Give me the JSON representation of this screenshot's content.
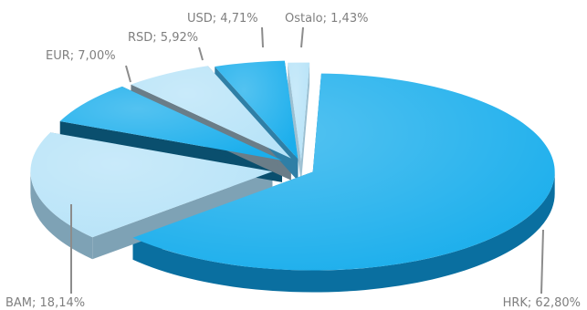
{
  "chart_data": {
    "type": "pie",
    "three_d": true,
    "exploded": true,
    "legend": "none",
    "data_label_format": "category; percent",
    "categories": [
      "HRK",
      "BAM",
      "EUR",
      "RSD",
      "USD",
      "Ostalo"
    ],
    "values": [
      62.8,
      18.14,
      7.0,
      5.92,
      4.71,
      1.43
    ],
    "labels": [
      "HRK; 62,80%",
      "BAM; 18,14%",
      "EUR; 7,00%",
      "RSD; 5,92%",
      "USD; 4,71%",
      "Ostalo; 1,43%"
    ],
    "colors": [
      "#1aaeec",
      "#b7e3f8",
      "#1aaeec",
      "#b7e3f8",
      "#1aaeec",
      "#b7e3f8"
    ],
    "side_colors": [
      "#0a6fa0",
      "#7ea2b5",
      "#0a4f6e",
      "#6a7d88",
      "#2f7fa6",
      "#9cc0d2"
    ]
  }
}
